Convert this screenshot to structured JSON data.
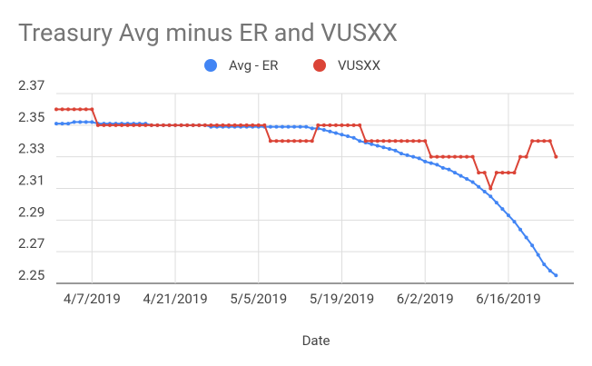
{
  "chart_data": {
    "type": "line",
    "title": "Treasury Avg minus ER and VUSXX",
    "x_label": "Date",
    "x": [
      "4/1/2019",
      "4/2/2019",
      "4/3/2019",
      "4/4/2019",
      "4/5/2019",
      "4/6/2019",
      "4/7/2019",
      "4/8/2019",
      "4/9/2019",
      "4/10/2019",
      "4/11/2019",
      "4/12/2019",
      "4/13/2019",
      "4/14/2019",
      "4/15/2019",
      "4/16/2019",
      "4/17/2019",
      "4/18/2019",
      "4/19/2019",
      "4/20/2019",
      "4/21/2019",
      "4/22/2019",
      "4/23/2019",
      "4/24/2019",
      "4/25/2019",
      "4/26/2019",
      "4/27/2019",
      "4/28/2019",
      "4/29/2019",
      "4/30/2019",
      "5/1/2019",
      "5/2/2019",
      "5/3/2019",
      "5/4/2019",
      "5/5/2019",
      "5/6/2019",
      "5/7/2019",
      "5/8/2019",
      "5/9/2019",
      "5/10/2019",
      "5/11/2019",
      "5/12/2019",
      "5/13/2019",
      "5/14/2019",
      "5/15/2019",
      "5/16/2019",
      "5/17/2019",
      "5/18/2019",
      "5/19/2019",
      "5/20/2019",
      "5/21/2019",
      "5/22/2019",
      "5/23/2019",
      "5/24/2019",
      "5/25/2019",
      "5/26/2019",
      "5/27/2019",
      "5/28/2019",
      "5/29/2019",
      "5/30/2019",
      "5/31/2019",
      "6/1/2019",
      "6/2/2019",
      "6/3/2019",
      "6/4/2019",
      "6/5/2019",
      "6/6/2019",
      "6/7/2019",
      "6/8/2019",
      "6/9/2019",
      "6/10/2019",
      "6/11/2019",
      "6/12/2019",
      "6/13/2019",
      "6/14/2019",
      "6/15/2019",
      "6/16/2019",
      "6/17/2019",
      "6/18/2019",
      "6/19/2019",
      "6/20/2019",
      "6/21/2019",
      "6/22/2019",
      "6/23/2019",
      "6/24/2019"
    ],
    "series": [
      {
        "name": "Avg - ER",
        "color": "#4285f4",
        "values": [
          2.351,
          2.351,
          2.351,
          2.352,
          2.352,
          2.352,
          2.352,
          2.351,
          2.351,
          2.351,
          2.351,
          2.351,
          2.351,
          2.351,
          2.351,
          2.351,
          2.35,
          2.35,
          2.35,
          2.35,
          2.35,
          2.35,
          2.35,
          2.35,
          2.35,
          2.35,
          2.349,
          2.349,
          2.349,
          2.349,
          2.349,
          2.349,
          2.349,
          2.349,
          2.349,
          2.349,
          2.349,
          2.349,
          2.349,
          2.349,
          2.349,
          2.349,
          2.349,
          2.348,
          2.348,
          2.347,
          2.346,
          2.345,
          2.344,
          2.343,
          2.342,
          2.34,
          2.339,
          2.338,
          2.337,
          2.336,
          2.335,
          2.334,
          2.332,
          2.331,
          2.33,
          2.329,
          2.327,
          2.326,
          2.325,
          2.323,
          2.322,
          2.32,
          2.318,
          2.316,
          2.314,
          2.311,
          2.308,
          2.305,
          2.301,
          2.297,
          2.293,
          2.289,
          2.284,
          2.279,
          2.274,
          2.268,
          2.262,
          2.258,
          2.255
        ]
      },
      {
        "name": "VUSXX",
        "color": "#db4437",
        "values": [
          2.36,
          2.36,
          2.36,
          2.36,
          2.36,
          2.36,
          2.36,
          2.35,
          2.35,
          2.35,
          2.35,
          2.35,
          2.35,
          2.35,
          2.35,
          2.35,
          2.35,
          2.35,
          2.35,
          2.35,
          2.35,
          2.35,
          2.35,
          2.35,
          2.35,
          2.35,
          2.35,
          2.35,
          2.35,
          2.35,
          2.35,
          2.35,
          2.35,
          2.35,
          2.35,
          2.35,
          2.34,
          2.34,
          2.34,
          2.34,
          2.34,
          2.34,
          2.34,
          2.34,
          2.35,
          2.35,
          2.35,
          2.35,
          2.35,
          2.35,
          2.35,
          2.35,
          2.34,
          2.34,
          2.34,
          2.34,
          2.34,
          2.34,
          2.34,
          2.34,
          2.34,
          2.34,
          2.34,
          2.33,
          2.33,
          2.33,
          2.33,
          2.33,
          2.33,
          2.33,
          2.33,
          2.32,
          2.32,
          2.31,
          2.32,
          2.32,
          2.32,
          2.32,
          2.33,
          2.33,
          2.34,
          2.34,
          2.34,
          2.34,
          2.33
        ]
      }
    ],
    "xlim": [
      "4/1/2019",
      "6/27/2019"
    ],
    "xticks": [
      "4/7/2019",
      "4/21/2019",
      "5/5/2019",
      "5/19/2019",
      "6/2/2019",
      "6/16/2019"
    ],
    "ylim": [
      2.25,
      2.37
    ],
    "yticks": [
      2.25,
      2.27,
      2.29,
      2.31,
      2.33,
      2.35,
      2.37
    ],
    "grid": true,
    "legend": "top"
  }
}
